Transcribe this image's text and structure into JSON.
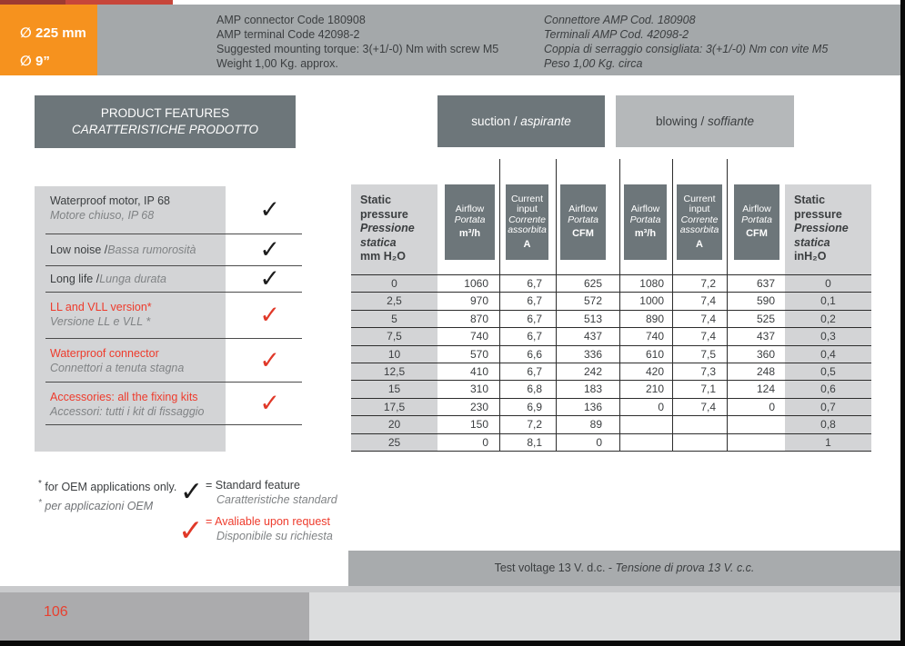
{
  "badge": {
    "line1": "∅ 225 mm",
    "line2": "∅ 9”"
  },
  "header": {
    "en": [
      "AMP connector Code 180908",
      "AMP terminal Code 42098-2",
      "Suggested mounting torque: 3(+1/-0) Nm with screw M5",
      "Weight 1,00 Kg. approx."
    ],
    "it": [
      "Connettore AMP Cod. 180908",
      "Terminali AMP Cod. 42098-2",
      "Coppia di serraggio consigliata: 3(+1/-0) Nm con vite M5",
      "Peso 1,00  Kg. circa"
    ]
  },
  "features": {
    "title_en": "PRODUCT FEATURES",
    "title_it": "CARATTERISTICHE PRODOTTO",
    "items": [
      {
        "en": "Waterproof motor, IP 68",
        "it": "Motore chiuso, IP 68"
      },
      {
        "en": "Low noise / ",
        "it": "Bassa rumorosità"
      },
      {
        "en": "Long life / ",
        "it": "Lunga durata"
      },
      {
        "en": "LL and VLL version*",
        "it": "Versione LL e VLL *"
      },
      {
        "en": "Waterproof connector",
        "it": "Connettori a tenuta stagna"
      },
      {
        "en": "Accessories: all the fixing kits",
        "it": "Accessori: tutti i kit di fissaggio"
      }
    ]
  },
  "modes": {
    "suction_en": "suction / ",
    "suction_it": "aspirante",
    "blowing_en": "blowing / ",
    "blowing_it": "soffiante"
  },
  "glyphs": {
    "check": "✓"
  },
  "table": {
    "static_left": {
      "en": "Static pressure",
      "it": "Pressione statica",
      "unit": "mm H₂O"
    },
    "static_right": {
      "en": "Static pressure",
      "it": "Pressione statica",
      "unit": "inH₂O"
    },
    "dark_headers": [
      {
        "title": "Airflow",
        "sub": "Portata",
        "unit": "m³/h"
      },
      {
        "title": "Current input",
        "sub": "Corrente assorbita",
        "unit": "A"
      },
      {
        "title": "Airflow",
        "sub": "Portata",
        "unit": "CFM"
      },
      {
        "title": "Airflow",
        "sub": "Portata",
        "unit": "m³/h"
      },
      {
        "title": "Current input",
        "sub": "Corrente assorbita",
        "unit": "A"
      },
      {
        "title": "Airflow",
        "sub": "Portata",
        "unit": "CFM"
      }
    ],
    "rows": [
      [
        "0",
        "1060",
        "6,7",
        "625",
        "1080",
        "7,2",
        "637",
        "0"
      ],
      [
        "2,5",
        "970",
        "6,7",
        "572",
        "1000",
        "7,4",
        "590",
        "0,1"
      ],
      [
        "5",
        "870",
        "6,7",
        "513",
        "890",
        "7,4",
        "525",
        "0,2"
      ],
      [
        "7,5",
        "740",
        "6,7",
        "437",
        "740",
        "7,4",
        "437",
        "0,3"
      ],
      [
        "10",
        "570",
        "6,6",
        "336",
        "610",
        "7,5",
        "360",
        "0,4"
      ],
      [
        "12,5",
        "410",
        "6,7",
        "242",
        "420",
        "7,3",
        "248",
        "0,5"
      ],
      [
        "15",
        "310",
        "6,8",
        "183",
        "210",
        "7,1",
        "124",
        "0,6"
      ],
      [
        "17,5",
        "230",
        "6,9",
        "136",
        "0",
        "7,4",
        "0",
        "0,7"
      ],
      [
        "20",
        "150",
        "7,2",
        "89",
        "",
        "",
        "",
        "0,8"
      ],
      [
        "25",
        "0",
        "8,1",
        "0",
        "",
        "",
        "",
        "1"
      ]
    ]
  },
  "legend": {
    "star": "*",
    "oem_en": " for OEM applications only.",
    "oem_it": " per applicazioni OEM",
    "standard_en": "= Standard feature",
    "standard_it": "Caratteristiche standard",
    "request_en": "= Avaliable upon request",
    "request_it": "Disponibile su richiesta"
  },
  "test_voltage": {
    "en": "Test voltage 13 V. d.c. - ",
    "it": "Tensione di prova 13 V. c.c."
  },
  "footer": {
    "page": "106"
  },
  "colors": {
    "orange": "#f6921e",
    "slate": "#6d767a",
    "header_gray": "#a4a8aa",
    "light_gray": "#d3d4d6",
    "red": "#ee3b2c",
    "check_red": "#e03828"
  }
}
